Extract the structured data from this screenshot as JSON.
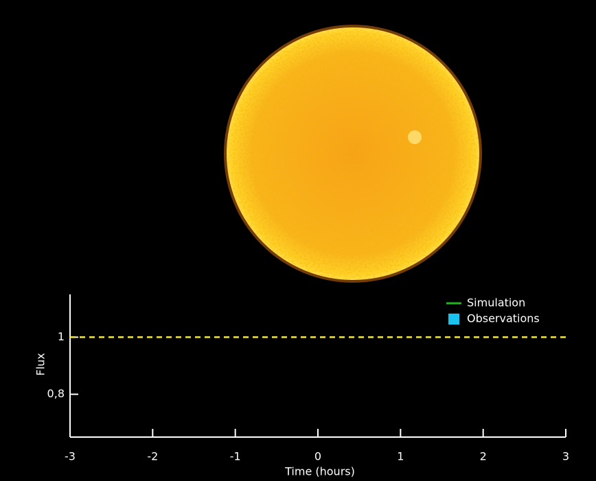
{
  "chart_data": {
    "type": "line",
    "xlabel": "Time (hours)",
    "ylabel": "Flux",
    "xlim": [
      -3,
      3
    ],
    "xticks": [
      -3,
      -2,
      -1,
      0,
      1,
      2,
      3
    ],
    "ylim": [
      0.65,
      1.15
    ],
    "yticks": [
      {
        "value": 0.8,
        "label": "0,8"
      },
      1
    ],
    "x": [],
    "series": [
      {
        "name": "Simulation",
        "color": "#1fb51f",
        "values": []
      },
      {
        "name": "Observations",
        "color": "#19c3f0",
        "values": []
      }
    ],
    "hline": {
      "value": 1,
      "color": "#f5e642",
      "style": "dashed"
    },
    "legend": "upper right"
  }
}
